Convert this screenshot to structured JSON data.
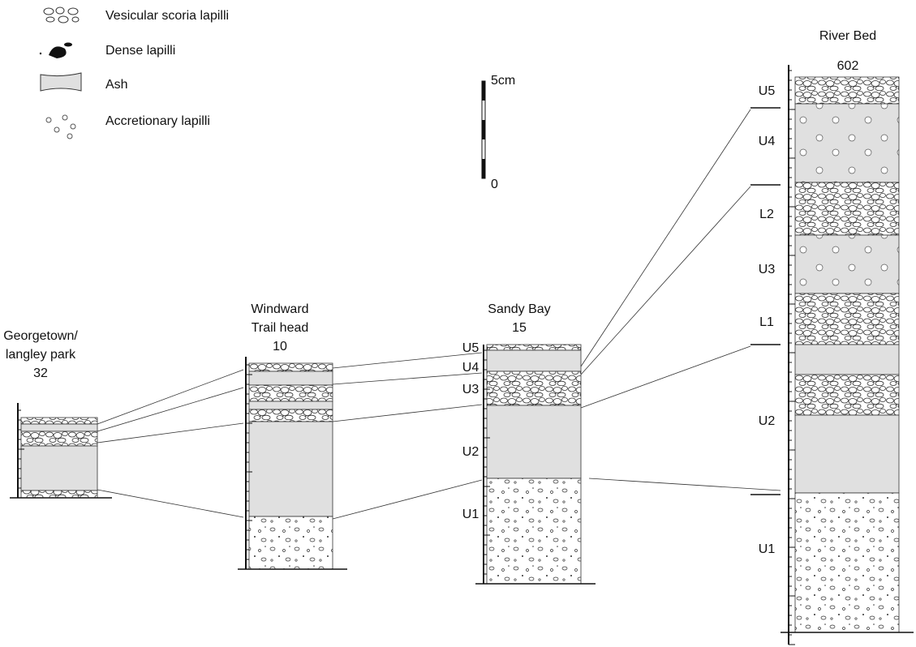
{
  "legend": [
    {
      "label": "Vesicular scoria lapilli"
    },
    {
      "label": "Dense lapilli"
    },
    {
      "label": "Ash"
    },
    {
      "label": "Accretionary lapilli"
    }
  ],
  "scale": {
    "top": "5cm",
    "bottom": "0"
  },
  "columns": [
    {
      "name_lines": [
        "Georgetown/",
        "langley park"
      ],
      "number": "32",
      "units": []
    },
    {
      "name_lines": [
        "Windward",
        "Trail head"
      ],
      "number": "10",
      "units": []
    },
    {
      "name_lines": [
        "Sandy Bay"
      ],
      "number": "15",
      "units": [
        "U5",
        "U4",
        "U3",
        "U2",
        "U1"
      ]
    },
    {
      "name_lines": [
        "River Bed"
      ],
      "number": "602",
      "units": [
        "U5",
        "U4",
        "L2",
        "U3",
        "L1",
        "U2",
        "U1"
      ]
    }
  ]
}
